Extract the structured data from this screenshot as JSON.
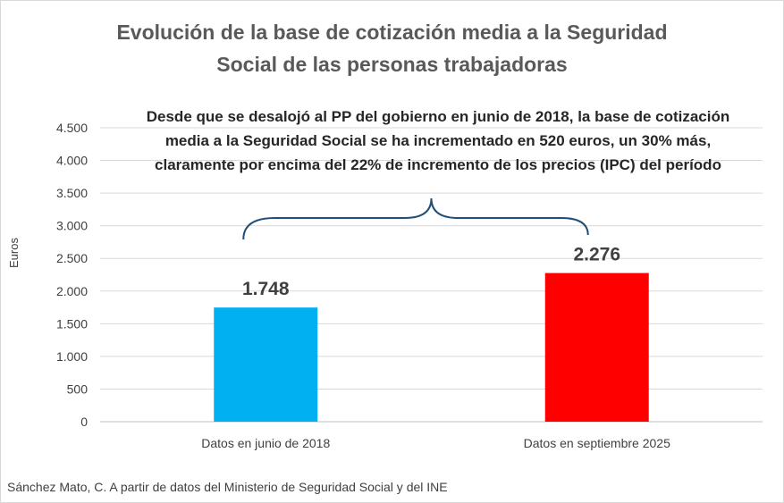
{
  "chart_data": {
    "type": "bar",
    "title_lines": [
      "Evolución de la base de cotización media a la Seguridad",
      "Social de las personas trabajadoras"
    ],
    "annotation": "Desde que se desalojó al PP del gobierno en junio de 2018, la base de cotización media a la Seguridad Social se ha incrementado en 520 euros, un 30% más, claramente por encima del 22% de incremento de los precios (IPC) del período",
    "ylabel": "Euros",
    "xlabel": "",
    "ylim": [
      0,
      4500
    ],
    "y_ticks": [
      0,
      500,
      1000,
      1500,
      2000,
      2500,
      3000,
      3500,
      4000,
      4500
    ],
    "y_tick_labels": [
      "0",
      "500",
      "1.000",
      "1.500",
      "2.000",
      "2.500",
      "3.000",
      "3.500",
      "4.000",
      "4.500"
    ],
    "grid": true,
    "categories": [
      "Datos en junio de 2018",
      "Datos en septiembre 2025"
    ],
    "values": [
      1748,
      2276
    ],
    "value_labels": [
      "1.748",
      "2.276"
    ],
    "bar_colors": [
      "#00b0f0",
      "#ff0000"
    ]
  },
  "source": "Sánchez Mato, C.  A partir de datos del Ministerio de Seguridad Social y del INE",
  "colors": {
    "title": "#595959",
    "grid": "#d9d9d9",
    "brace": "#1f4e79",
    "text": "#404040"
  }
}
